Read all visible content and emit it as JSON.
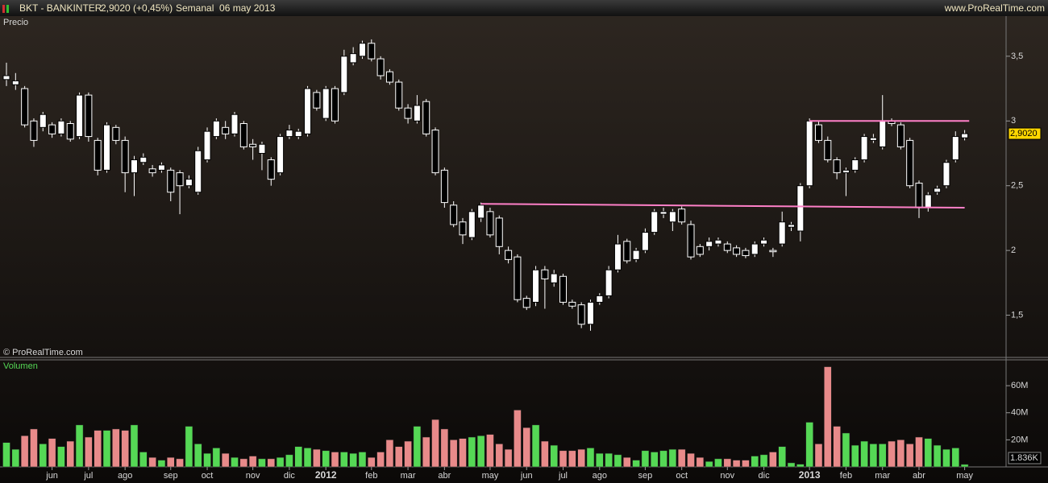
{
  "header": {
    "symbol": "BKT - BANKINTER",
    "quote": "2,9020 (+0,45%)",
    "period": "Semanal  06 may 2013",
    "site": "www.ProRealTime.com"
  },
  "credit": "© ProRealTime.com",
  "chart_data": [
    {
      "type": "candlestick",
      "title": "Precio",
      "open": [
        3.32,
        3.28,
        3.25,
        3.0,
        2.95,
        2.97,
        2.9,
        2.98,
        2.88,
        3.2,
        2.85,
        2.62,
        2.95,
        2.85,
        2.6,
        2.68,
        2.63,
        2.62,
        2.62,
        2.6,
        2.5,
        2.45,
        2.7,
        2.88,
        2.95,
        2.9,
        2.98,
        2.82,
        2.75,
        2.7,
        2.6,
        2.88,
        2.88,
        2.9,
        3.22,
        3.02,
        3.25,
        3.22,
        3.45,
        3.5,
        3.6,
        3.48,
        3.38,
        3.3,
        3.1,
        3.0,
        3.15,
        2.93,
        2.62,
        2.35,
        2.22,
        2.1,
        2.25,
        2.3,
        2.25,
        2.0,
        1.95,
        1.63,
        1.6,
        1.85,
        1.75,
        1.8,
        1.6,
        1.58,
        1.43,
        1.6,
        1.65,
        1.85,
        2.07,
        1.93,
        2.0,
        2.14,
        2.28,
        2.22,
        2.32,
        2.2,
        2.03,
        2.03,
        2.05,
        2.05,
        2.02,
        2.0,
        1.97,
        2.05,
        2.0,
        2.05,
        2.18,
        2.15,
        2.5,
        2.97,
        2.85,
        2.7,
        2.6,
        2.62,
        2.7,
        2.85,
        2.8,
        3.0,
        2.97,
        2.85,
        2.52,
        2.33,
        2.45,
        2.5,
        2.7,
        2.87
      ],
      "high": [
        3.45,
        3.37,
        3.27,
        3.02,
        3.07,
        2.99,
        3.02,
        3.0,
        3.22,
        3.22,
        2.87,
        2.99,
        2.97,
        2.88,
        2.73,
        2.75,
        2.66,
        2.68,
        2.64,
        2.62,
        2.58,
        2.8,
        2.95,
        3.02,
        3.0,
        3.07,
        3.0,
        2.86,
        2.84,
        2.72,
        2.9,
        2.97,
        2.94,
        3.27,
        3.24,
        3.27,
        3.27,
        3.55,
        3.57,
        3.62,
        3.63,
        3.5,
        3.4,
        3.32,
        3.13,
        3.2,
        3.17,
        2.95,
        2.64,
        2.38,
        2.25,
        2.32,
        2.37,
        2.33,
        2.27,
        2.03,
        1.97,
        1.65,
        1.88,
        1.88,
        1.85,
        1.82,
        1.62,
        1.6,
        1.62,
        1.67,
        1.88,
        2.12,
        2.09,
        2.02,
        2.17,
        2.32,
        2.33,
        2.32,
        2.34,
        2.23,
        2.05,
        2.1,
        2.1,
        2.07,
        2.04,
        2.02,
        2.07,
        2.1,
        2.02,
        2.3,
        2.22,
        2.52,
        3.02,
        3.0,
        2.88,
        2.72,
        2.64,
        2.72,
        2.9,
        2.9,
        3.2,
        3.02,
        2.99,
        2.87,
        2.54,
        2.45,
        2.5,
        2.7,
        2.92,
        2.93
      ],
      "low": [
        3.27,
        3.24,
        2.95,
        2.8,
        2.92,
        2.87,
        2.88,
        2.84,
        2.86,
        2.84,
        2.58,
        2.6,
        2.82,
        2.45,
        2.42,
        2.66,
        2.57,
        2.6,
        2.38,
        2.28,
        2.48,
        2.43,
        2.68,
        2.86,
        2.86,
        2.88,
        2.78,
        2.7,
        2.62,
        2.5,
        2.58,
        2.86,
        2.86,
        2.88,
        3.08,
        3.0,
        2.98,
        3.2,
        3.43,
        3.48,
        3.46,
        3.32,
        3.28,
        3.08,
        2.98,
        2.98,
        2.88,
        2.58,
        2.33,
        2.18,
        2.05,
        2.08,
        2.22,
        2.1,
        1.97,
        1.9,
        1.6,
        1.54,
        1.57,
        1.55,
        1.72,
        1.58,
        1.55,
        1.4,
        1.38,
        1.58,
        1.63,
        1.83,
        1.9,
        1.91,
        1.98,
        2.12,
        2.25,
        2.15,
        2.2,
        1.93,
        1.95,
        2.0,
        2.03,
        1.98,
        1.95,
        1.94,
        1.95,
        2.03,
        1.95,
        2.03,
        2.15,
        2.07,
        2.48,
        2.83,
        2.68,
        2.55,
        2.42,
        2.6,
        2.68,
        2.83,
        2.78,
        2.96,
        2.78,
        2.48,
        2.25,
        2.3,
        2.43,
        2.48,
        2.68,
        2.85
      ],
      "close": [
        3.35,
        3.31,
        2.97,
        2.85,
        3.05,
        2.9,
        3.0,
        2.86,
        3.2,
        2.88,
        2.62,
        2.97,
        2.85,
        2.6,
        2.7,
        2.72,
        2.6,
        2.66,
        2.45,
        2.5,
        2.55,
        2.77,
        2.92,
        3.0,
        2.9,
        3.05,
        2.8,
        2.8,
        2.82,
        2.55,
        2.88,
        2.93,
        2.92,
        3.25,
        3.1,
        3.25,
        3.0,
        3.5,
        3.52,
        3.6,
        3.48,
        3.35,
        3.3,
        3.1,
        3.02,
        3.12,
        2.9,
        2.6,
        2.37,
        2.2,
        2.12,
        2.3,
        2.35,
        2.12,
        2.03,
        1.93,
        1.62,
        1.56,
        1.85,
        1.78,
        1.82,
        1.6,
        1.57,
        1.43,
        1.6,
        1.65,
        1.85,
        2.05,
        1.92,
        2.0,
        2.14,
        2.3,
        2.3,
        2.3,
        2.22,
        1.95,
        1.97,
        2.07,
        2.08,
        2.0,
        1.97,
        1.96,
        2.05,
        2.08,
        1.99,
        2.22,
        2.2,
        2.5,
        3.0,
        2.85,
        2.7,
        2.6,
        2.62,
        2.7,
        2.88,
        2.87,
        3.0,
        2.98,
        2.8,
        2.5,
        2.33,
        2.43,
        2.48,
        2.68,
        2.88,
        2.902
      ],
      "up_color": "#ffffff",
      "down_color": "#000000",
      "ylim": [
        1.18,
        3.81
      ],
      "yticks": [
        {
          "value": 1.5,
          "label": "1,5"
        },
        2,
        {
          "value": 2.5,
          "label": "2,5"
        },
        3,
        {
          "value": 3.5,
          "label": "3,5"
        }
      ],
      "last_label": {
        "value": 2.902,
        "label": "2,9020"
      },
      "lines": [
        {
          "x": [
            52,
            105
          ],
          "y": [
            2.36,
            2.33
          ]
        },
        {
          "x": [
            88,
            105.5
          ],
          "y": [
            3.0,
            3.0
          ]
        }
      ],
      "line_color": "#ff80c8"
    },
    {
      "type": "bar",
      "title": "Volumen",
      "categories": [
        null,
        null,
        null,
        null,
        null,
        "jun",
        null,
        null,
        null,
        "jul",
        null,
        null,
        null,
        "ago",
        null,
        null,
        null,
        null,
        "sep",
        null,
        null,
        null,
        "oct",
        null,
        null,
        null,
        null,
        "nov",
        null,
        null,
        null,
        "dic",
        null,
        null,
        null,
        "2012",
        null,
        null,
        null,
        null,
        "feb",
        null,
        null,
        null,
        "mar",
        null,
        null,
        null,
        "abr",
        null,
        null,
        null,
        null,
        "may",
        null,
        null,
        null,
        "jun",
        null,
        null,
        null,
        "jul",
        null,
        null,
        null,
        "ago",
        null,
        null,
        null,
        null,
        "sep",
        null,
        null,
        null,
        "oct",
        null,
        null,
        null,
        null,
        "nov",
        null,
        null,
        null,
        "dic",
        null,
        null,
        null,
        null,
        "2013",
        null,
        null,
        null,
        "feb",
        null,
        null,
        null,
        "mar",
        null,
        null,
        null,
        "abr",
        null,
        null,
        null,
        null,
        "may"
      ],
      "values": [
        18,
        13,
        23,
        28,
        17,
        21,
        15,
        19,
        31,
        22,
        27,
        27,
        28,
        27,
        31,
        11,
        7,
        5,
        7,
        6,
        30,
        17,
        10,
        14,
        10,
        7,
        6,
        8,
        6,
        6,
        7,
        9,
        15,
        14,
        13,
        12,
        11,
        11,
        10,
        11,
        7,
        11,
        20,
        15,
        19,
        30,
        22,
        35,
        28,
        20,
        21,
        22,
        23,
        24,
        17,
        13,
        42,
        29,
        31,
        19,
        16,
        12,
        12,
        13,
        14,
        10,
        10,
        9,
        7,
        5,
        12,
        11,
        12,
        13,
        13,
        10,
        7,
        4,
        6,
        6,
        5,
        5,
        8,
        9,
        11,
        15,
        3,
        2,
        33,
        17,
        74,
        30,
        25,
        16,
        19,
        17,
        17,
        19,
        20,
        17,
        22,
        21,
        16,
        13,
        14,
        1.836
      ],
      "up_color": "#55d855",
      "down_color": "#e88a8a",
      "ylim": [
        0,
        78.5
      ],
      "yticks": [
        {
          "value": 20,
          "label": "20M"
        },
        {
          "value": 40,
          "label": "40M"
        },
        {
          "value": 60,
          "label": "60M"
        }
      ],
      "last_label": {
        "value": 1.836,
        "label": "1.836K"
      }
    }
  ]
}
